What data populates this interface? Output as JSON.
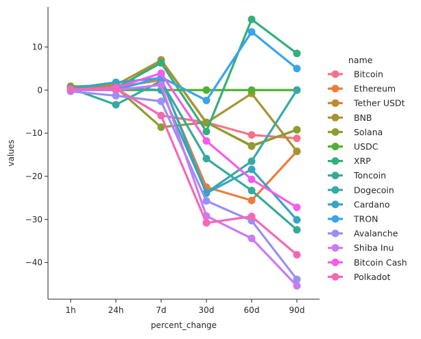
{
  "chart_data": {
    "type": "line",
    "xlabel": "percent_change",
    "ylabel": "values",
    "categories": [
      "1h",
      "24h",
      "7d",
      "30d",
      "60d",
      "90d"
    ],
    "yticks": [
      10,
      0,
      -10,
      -20,
      -30,
      -40
    ],
    "ylim": [
      -48.5,
      19.3
    ],
    "grid": false,
    "legend": {
      "title": "name",
      "placement": "right"
    },
    "series": [
      {
        "name": "Bitcoin",
        "color": "#f77189",
        "values": [
          0.5,
          0.4,
          -5.9,
          -7.5,
          -10.4,
          -11.2
        ]
      },
      {
        "name": "Ethereum",
        "color": "#ed7b3c",
        "values": [
          0.6,
          0.7,
          2.3,
          -22.5,
          -25.6,
          -14.2
        ]
      },
      {
        "name": "Tether USDt",
        "color": "#c4892b",
        "values": [
          0.0,
          0.0,
          7.0,
          -7.5,
          -13.0,
          -9.2
        ]
      },
      {
        "name": "BNB",
        "color": "#a69432",
        "values": [
          0.8,
          1.2,
          6.9,
          -7.6,
          -0.8,
          -14.2
        ]
      },
      {
        "name": "Solana",
        "color": "#8e9c31",
        "values": [
          0.9,
          0.6,
          -8.6,
          -7.5,
          -12.9,
          -9.2
        ]
      },
      {
        "name": "USDC",
        "color": "#50b131",
        "values": [
          0.0,
          0.0,
          0.0,
          0.0,
          0.0,
          0.0
        ]
      },
      {
        "name": "XRP",
        "color": "#33ae7d",
        "values": [
          0.2,
          0.5,
          6.3,
          -9.6,
          16.4,
          8.5
        ]
      },
      {
        "name": "Toncoin",
        "color": "#36aa9a",
        "values": [
          0.4,
          -3.4,
          2.1,
          -15.9,
          -23.3,
          -32.4
        ]
      },
      {
        "name": "Dogecoin",
        "color": "#37a8a8",
        "values": [
          0.3,
          0.5,
          0.0,
          -23.8,
          -16.5,
          0.0
        ]
      },
      {
        "name": "Cardano",
        "color": "#3aa3c3",
        "values": [
          0.4,
          1.8,
          2.8,
          -23.9,
          -18.4,
          -30.1
        ]
      },
      {
        "name": "TRON",
        "color": "#3ba3ec",
        "values": [
          0.0,
          0.0,
          3.0,
          -2.4,
          13.5,
          5.0
        ]
      },
      {
        "name": "Avalanche",
        "color": "#9890f4",
        "values": [
          -0.3,
          -1.3,
          -2.6,
          -25.7,
          -30.3,
          -43.9
        ]
      },
      {
        "name": "Shiba Inu",
        "color": "#cc79f4",
        "values": [
          0.0,
          0.0,
          1.2,
          -29.2,
          -34.4,
          -45.4
        ]
      },
      {
        "name": "Bitcoin Cash",
        "color": "#f45cea",
        "values": [
          0.1,
          0.6,
          3.9,
          -11.8,
          -20.7,
          -27.2
        ]
      },
      {
        "name": "Polkadot",
        "color": "#f667b6",
        "values": [
          0.2,
          0.3,
          -5.9,
          -30.8,
          -29.3,
          -38.2
        ]
      }
    ]
  }
}
